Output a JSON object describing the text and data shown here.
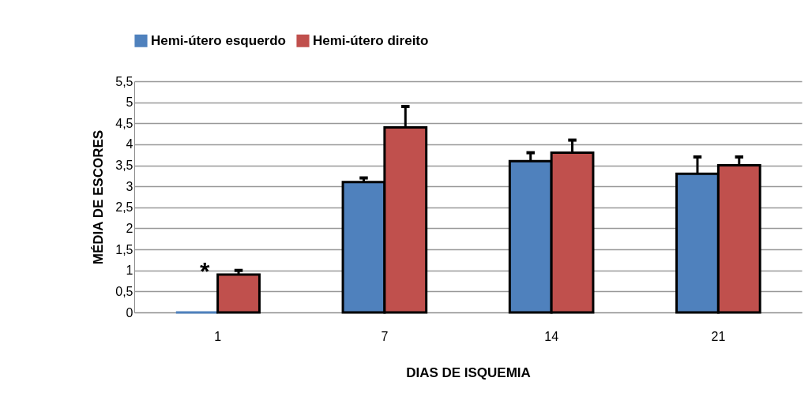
{
  "chart_data": {
    "type": "bar",
    "xlabel": "DIAS DE ISQUEMIA",
    "ylabel": "MÉDIA DE ESCORES",
    "categories": [
      "1",
      "7",
      "14",
      "21"
    ],
    "series": [
      {
        "name": "Hemi-útero esquerdo",
        "color": "#4f81bd",
        "values": [
          0,
          3.1,
          3.6,
          3.3
        ],
        "errors": [
          null,
          [
            3.1,
            3.2
          ],
          [
            3.6,
            3.8
          ],
          [
            3.3,
            3.7
          ]
        ]
      },
      {
        "name": "Hemi-útero direito",
        "color": "#c0504d",
        "values": [
          0.9,
          4.4,
          3.8,
          3.5
        ],
        "errors": [
          [
            0.9,
            1.0
          ],
          [
            4.4,
            4.9
          ],
          [
            3.8,
            4.1
          ],
          [
            3.5,
            3.7
          ]
        ]
      }
    ],
    "ylim": [
      0,
      5.5
    ],
    "yticks": [
      0,
      {
        "value": 0.5,
        "label": "0,5"
      },
      1,
      {
        "value": 1.5,
        "label": "1,5"
      },
      2,
      {
        "value": 2.5,
        "label": "2,5"
      },
      3,
      {
        "value": 3.5,
        "label": "3,5"
      },
      4,
      {
        "value": 4.5,
        "label": "4,5"
      },
      5,
      {
        "value": 5.5,
        "label": "5,5"
      }
    ],
    "grid": "y",
    "legend": "top",
    "annotations": [
      {
        "text": "*",
        "x": "1",
        "y": 1.0
      }
    ]
  }
}
